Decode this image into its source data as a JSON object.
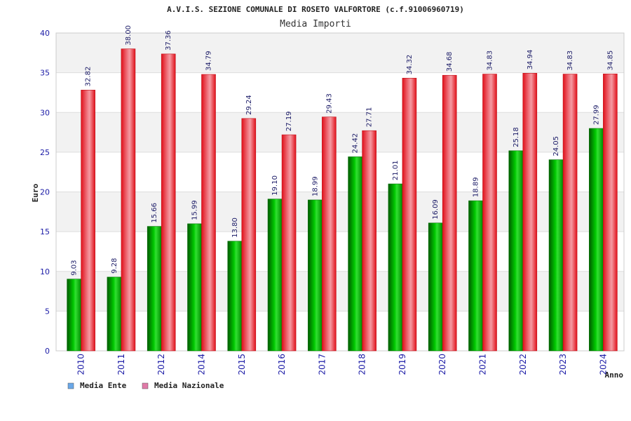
{
  "chart_data": {
    "type": "bar",
    "title": "A.V.I.S. SEZIONE COMUNALE DI ROSETO VALFORTORE (c.f.91006960719)",
    "subtitle": "Media Importi",
    "xlabel": "Anno",
    "ylabel": "Euro",
    "ylim": [
      0,
      40
    ],
    "yticks": [
      "0",
      "5",
      "10",
      "15",
      "20",
      "25",
      "30",
      "35",
      "40"
    ],
    "grid": true,
    "legend_position": "bottom-left",
    "categories": [
      "2010",
      "2011",
      "2012",
      "2014",
      "2015",
      "2016",
      "2017",
      "2018",
      "2019",
      "2020",
      "2021",
      "2022",
      "2023",
      "2024"
    ],
    "series": [
      {
        "name": "Media Ente",
        "color": "#00b000",
        "legend_color": "#6aa8e8",
        "values": [
          9.03,
          9.28,
          15.66,
          15.99,
          13.8,
          19.1,
          18.99,
          24.42,
          21.01,
          16.09,
          18.89,
          25.18,
          24.05,
          27.99
        ],
        "labels": [
          "9.03",
          "9.28",
          "15.66",
          "15.99",
          "13.80",
          "19.10",
          "18.99",
          "24.42",
          "21.01",
          "16.09",
          "18.89",
          "25.18",
          "24.05",
          "27.99"
        ]
      },
      {
        "name": "Media Nazionale",
        "color": "#e8202a",
        "legend_color": "#e07aa8",
        "values": [
          32.82,
          38.0,
          37.36,
          34.79,
          29.24,
          27.19,
          29.43,
          27.71,
          34.32,
          34.68,
          34.83,
          34.94,
          34.83,
          34.85
        ],
        "labels": [
          "32.82",
          "38.00",
          "37.36",
          "34.79",
          "29.24",
          "27.19",
          "29.43",
          "27.71",
          "34.32",
          "34.68",
          "34.83",
          "34.94",
          "34.83",
          "34.85"
        ]
      }
    ]
  }
}
